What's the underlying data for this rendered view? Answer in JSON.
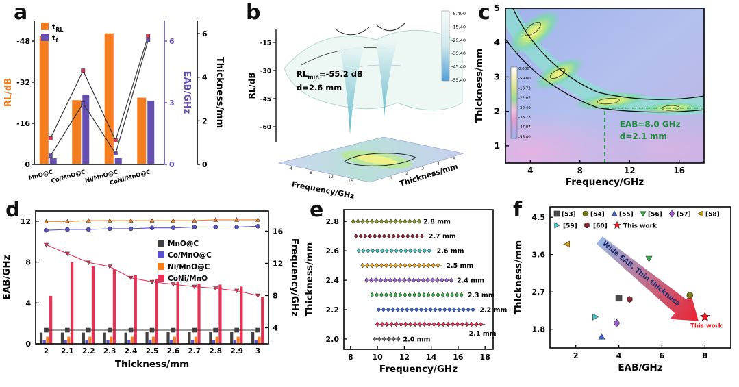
{
  "colors": {
    "orange": "#f47d20",
    "purple": "#6650b4",
    "red": "#e63054",
    "pure_red": "#ed1c24",
    "dark_gray": "#404040",
    "blue": "#4a5fd0",
    "green": "#3cb44a",
    "cyan": "#40c8c8",
    "olive": "#8f9a20",
    "gold": "#d09c14",
    "amber": "#e8a81c",
    "dark_red": "#8c2332",
    "violet": "#a060d0",
    "annotation_green": "#1e8c3c"
  },
  "chart_data": [
    {
      "panel": "a",
      "type": "bar",
      "categories": [
        "MnO@C",
        "Co/MnO@C",
        "Ni/MnO@C",
        "CoNi/MnO@C"
      ],
      "legend": [
        {
          "label": "t_RL",
          "color": "#f47d20"
        },
        {
          "label": "t_f",
          "color": "#6650b4"
        }
      ],
      "left_axis": {
        "label": "RL/dB",
        "ticks": [
          0,
          -16,
          -32,
          -48
        ],
        "range": [
          0,
          -56
        ]
      },
      "right_axis1": {
        "label": "EAB/GHz",
        "ticks": [
          0,
          3,
          6
        ],
        "range": [
          0,
          7
        ]
      },
      "right_axis2": {
        "label": "Thickness/mm",
        "ticks": [
          0,
          2,
          4,
          6
        ],
        "range": [
          0,
          6.6
        ]
      },
      "series": [
        {
          "name": "RL_min",
          "type": "bar",
          "axis": "left",
          "values": [
            -50,
            -25,
            -51,
            -26
          ]
        },
        {
          "name": "EAB",
          "type": "bar",
          "axis": "right1",
          "values": [
            0.3,
            3.4,
            0.3,
            3.1
          ]
        },
        {
          "name": "t_RL",
          "type": "line",
          "axis": "right2",
          "values": [
            1.2,
            4.3,
            1.1,
            5.9
          ]
        },
        {
          "name": "t_f",
          "type": "line",
          "axis": "right2",
          "values": [
            0.4,
            2.8,
            0.5,
            5.7
          ]
        }
      ]
    },
    {
      "panel": "b",
      "type": "surface3d",
      "xlabel": "Frequency/GHz",
      "ylabel": "Thickness/mm",
      "zlabel": "RL/dB",
      "x_ticks": [
        4,
        8,
        12,
        16
      ],
      "y_ticks": [
        1,
        2,
        3,
        4,
        5
      ],
      "z_ticks": [
        -15,
        -30,
        -45,
        -60
      ],
      "annotation": {
        "line1": "RL",
        "sub": "min",
        "value": "=-55.2 dB",
        "line2": "d=2.6 mm"
      },
      "colorbar": {
        "labels": [
          "-5.400",
          "-15.40",
          "-25.40",
          "-35.40",
          "-45.40",
          "-55.40"
        ]
      }
    },
    {
      "panel": "c",
      "type": "heatmap",
      "xlabel": "Frequency/GHz",
      "ylabel": "Thickness/mm",
      "x_ticks": [
        4,
        8,
        12,
        16
      ],
      "x_range": [
        2,
        18
      ],
      "y_ticks": [
        1,
        2,
        3,
        4,
        5
      ],
      "y_range": [
        0.5,
        5
      ],
      "annotation": [
        "EAB=8.0 GHz",
        "d=2.1 mm"
      ],
      "dashed_line": {
        "thickness": 2.1,
        "freq_start": 10,
        "freq_end": 18
      },
      "colorbar": {
        "labels": [
          "0.000",
          "-5.400",
          "-13.73",
          "-22.07",
          "-30.40",
          "-38.73",
          "-47.07",
          "-55.40"
        ]
      }
    },
    {
      "panel": "d",
      "type": "bar",
      "xlabel": "Thickness/mm",
      "left_axis": {
        "label": "EAB/GHz",
        "ticks": [
          0,
          4,
          8,
          12
        ],
        "range": [
          0,
          13
        ]
      },
      "right_axis": {
        "label": "Frequency/GHz",
        "ticks": [
          4,
          8,
          12,
          16
        ],
        "range": [
          2,
          18.5
        ]
      },
      "categories": [
        2,
        2.1,
        2.2,
        2.3,
        2.4,
        2.5,
        2.6,
        2.7,
        2.8,
        2.9,
        3
      ],
      "x_tick_labels": [
        "2",
        "2.1",
        "2.2",
        "2.3",
        "2.4",
        "2.5",
        "2.6",
        "2.7",
        "2.8",
        "2.9",
        "3"
      ],
      "legend": [
        "MnO@C",
        "Co/MnO@C",
        "Ni/MnO@C",
        "CoNi/MnO"
      ],
      "bar_series": [
        {
          "name": "MnO@C",
          "color": "#404040",
          "values": [
            1.1,
            1.1,
            1.1,
            1.1,
            1.1,
            1.2,
            1.2,
            1.2,
            1.2,
            1.2,
            1.2
          ]
        },
        {
          "name": "Co/MnO@C",
          "color": "#5a52c8",
          "values": [
            0.4,
            0.4,
            0.4,
            0.4,
            0.4,
            0.4,
            0.4,
            0.4,
            0.4,
            0.4,
            0.4
          ]
        },
        {
          "name": "Ni/MnO@C",
          "color": "#f47d20",
          "values": [
            0.7,
            0.7,
            0.7,
            0.7,
            0.7,
            0.7,
            0.7,
            0.7,
            0.7,
            0.7,
            0.7
          ]
        },
        {
          "name": "CoNi/MnO",
          "color": "#e63054",
          "values": [
            4.7,
            8.0,
            7.6,
            7.3,
            6.7,
            6.3,
            6.1,
            5.9,
            5.8,
            5.6,
            4.6
          ]
        }
      ],
      "line_series": [
        {
          "name": "Ni/MnO@C-freq",
          "color": "#f47d20",
          "marker": "triangle",
          "values": [
            17.2,
            17.2,
            17.3,
            17.3,
            17.3,
            17.3,
            17.3,
            17.3,
            17.4,
            17.4,
            17.4
          ]
        },
        {
          "name": "Co/MnO@C-freq",
          "color": "#5a52c8",
          "marker": "circle",
          "values": [
            16.1,
            16.2,
            16.2,
            16.3,
            16.3,
            16.4,
            16.4,
            16.5,
            16.5,
            16.5,
            16.6
          ]
        },
        {
          "name": "CoNi/MnO-freq",
          "color": "#e63054",
          "marker": "triangle-down",
          "values": [
            14.3,
            13.2,
            12.1,
            11.6,
            10.2,
            9.7,
            9.4,
            9.1,
            8.9,
            8.6,
            8.0
          ]
        },
        {
          "name": "MnO@C-freq",
          "color": "#404040",
          "marker": "square",
          "values": [
            3.7,
            3.7,
            3.7,
            3.7,
            3.7,
            3.7,
            3.7,
            3.7,
            3.7,
            3.7,
            3.7
          ]
        }
      ]
    },
    {
      "panel": "e",
      "type": "scatter",
      "xlabel": "Frequency/GHz",
      "ylabel": "Thickness/mm",
      "x_ticks": [
        8,
        10,
        12,
        14,
        16,
        18
      ],
      "x_range": [
        7.5,
        18.6
      ],
      "y_ticks": [
        "2.0",
        "2.2",
        "2.4",
        "2.6",
        "2.8"
      ],
      "y_range": [
        1.93,
        2.88
      ],
      "rows": [
        {
          "thickness": 2.8,
          "label": "2.8 mm",
          "color": "#8f9a20",
          "start": 8.2,
          "end": 13.1
        },
        {
          "thickness": 2.7,
          "label": "2.7 mm",
          "color": "#8c2332",
          "start": 8.4,
          "end": 13.5
        },
        {
          "thickness": 2.6,
          "label": "2.6 mm",
          "color": "#40c8c8",
          "start": 8.6,
          "end": 14.1
        },
        {
          "thickness": 2.5,
          "label": "2.5 mm",
          "color": "#e8a81c",
          "start": 8.9,
          "end": 14.8
        },
        {
          "thickness": 2.4,
          "label": "2.4 mm",
          "color": "#a060d0",
          "start": 9.2,
          "end": 15.6
        },
        {
          "thickness": 2.3,
          "label": "2.3 mm",
          "color": "#3cb44a",
          "start": 9.6,
          "end": 16.4
        },
        {
          "thickness": 2.2,
          "label": "2.2 mm",
          "color": "#3a68d8",
          "start": 10.1,
          "end": 17.3
        },
        {
          "thickness": 2.1,
          "label": "2.1 mm",
          "color": "#e63054",
          "start": 10.0,
          "end": 18.0,
          "label_x": 16.8,
          "label_y": 2.04
        },
        {
          "thickness": 2.0,
          "label": "2.0 mm",
          "color": "#6a6a6a",
          "start": 9.8,
          "end": 11.6
        }
      ]
    },
    {
      "panel": "f",
      "type": "scatter",
      "xlabel": "EAB/GHz",
      "ylabel": "Thickness/mm",
      "x_ticks": [
        2,
        4,
        6,
        8
      ],
      "x_range": [
        0.8,
        9.2
      ],
      "y_ticks": [
        1.8,
        2.7,
        3.6,
        4.5
      ],
      "y_range": [
        1.35,
        4.75
      ],
      "legend": [
        {
          "label": "[53]",
          "marker": "square",
          "color": "#4a4a4a"
        },
        {
          "label": "[54]",
          "marker": "circle",
          "color": "#7a7a14"
        },
        {
          "label": "[55]",
          "marker": "triangle",
          "color": "#3a68d8"
        },
        {
          "label": "[56]",
          "marker": "triangle-down",
          "color": "#3cb44a"
        },
        {
          "label": "[57]",
          "marker": "diamond",
          "color": "#a060d0"
        },
        {
          "label": "[58]",
          "marker": "triangle-left",
          "color": "#d09c14"
        },
        {
          "label": "[59]",
          "marker": "triangle-right",
          "color": "#40c8c8"
        },
        {
          "label": "[60]",
          "marker": "hexagon",
          "color": "#8c2332"
        },
        {
          "label": "This work",
          "marker": "star",
          "color": "#ed1c24"
        }
      ],
      "points": [
        {
          "ref": "[53]",
          "x": 4.0,
          "y": 2.55,
          "marker": "square",
          "color": "#4a4a4a"
        },
        {
          "ref": "[54]",
          "x": 7.3,
          "y": 2.62,
          "marker": "circle",
          "color": "#7a7a14"
        },
        {
          "ref": "[55]",
          "x": 3.2,
          "y": 1.62,
          "marker": "triangle",
          "color": "#3a68d8"
        },
        {
          "ref": "[56]",
          "x": 5.4,
          "y": 3.5,
          "marker": "triangle-down",
          "color": "#3cb44a"
        },
        {
          "ref": "[57]",
          "x": 3.9,
          "y": 1.95,
          "marker": "diamond",
          "color": "#a060d0"
        },
        {
          "ref": "[58]",
          "x": 1.6,
          "y": 3.85,
          "marker": "triangle-left",
          "color": "#d09c14"
        },
        {
          "ref": "[59]",
          "x": 2.9,
          "y": 2.1,
          "marker": "triangle-right",
          "color": "#40c8c8"
        },
        {
          "ref": "[60]",
          "x": 4.5,
          "y": 2.52,
          "marker": "hexagon",
          "color": "#8c2332"
        },
        {
          "ref": "This work",
          "x": 8.0,
          "y": 2.1,
          "marker": "star",
          "color": "#ed1c24",
          "label": "This work"
        }
      ],
      "arrow": {
        "text": "Wide  EAB,  Thin  thickness",
        "from_color": "#8fb0e0",
        "to_color": "#e81020"
      }
    }
  ]
}
